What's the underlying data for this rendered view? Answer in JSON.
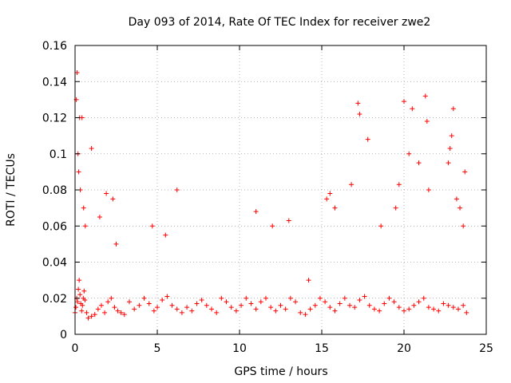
{
  "chart_data": {
    "type": "scatter",
    "title": "Day 093 of 2014, Rate Of TEC Index for receiver zwe2",
    "xlabel": "GPS time / hours",
    "ylabel": "ROTI / TECUs",
    "xlim": [
      0,
      25
    ],
    "ylim": [
      0,
      0.16
    ],
    "x_ticks": [
      0,
      5,
      10,
      15,
      20,
      25
    ],
    "x_tick_labels": [
      "0",
      "5",
      "10",
      "15",
      "20",
      "25"
    ],
    "y_ticks": [
      0,
      0.02,
      0.04,
      0.06,
      0.08,
      0.1,
      0.12,
      0.14,
      0.16
    ],
    "y_tick_labels": [
      "0",
      "0.02",
      "0.04",
      "0.06",
      "0.08",
      "0.1",
      "0.12",
      "0.14",
      "0.16"
    ],
    "grid": true,
    "marker": "+",
    "series": [
      {
        "name": "ROTI",
        "color": "#ff0000",
        "x": [
          0.0,
          0.05,
          0.1,
          0.15,
          0.2,
          0.25,
          0.3,
          0.35,
          0.4,
          0.45,
          0.5,
          0.55,
          0.6,
          0.7,
          0.8,
          1.0,
          1.2,
          1.4,
          1.6,
          1.8,
          2.0,
          2.2,
          2.4,
          2.6,
          2.8,
          3.0,
          3.3,
          3.6,
          3.9,
          4.2,
          4.5,
          4.8,
          5.0,
          5.3,
          5.6,
          5.9,
          6.2,
          6.5,
          6.8,
          7.1,
          7.4,
          7.7,
          8.0,
          8.3,
          8.6,
          8.9,
          9.2,
          9.5,
          9.8,
          10.1,
          10.4,
          10.7,
          11.0,
          11.3,
          11.6,
          11.9,
          12.2,
          12.5,
          12.8,
          13.1,
          13.4,
          13.7,
          14.0,
          14.3,
          14.6,
          14.9,
          15.2,
          15.5,
          15.8,
          16.1,
          16.4,
          16.7,
          17.0,
          17.3,
          17.6,
          17.9,
          18.2,
          18.5,
          18.8,
          19.1,
          19.4,
          19.7,
          20.0,
          20.3,
          20.6,
          20.9,
          21.2,
          21.5,
          21.8,
          22.1,
          22.4,
          22.7,
          23.0,
          23.3,
          23.6,
          23.8,
          0.08,
          0.12,
          0.18,
          0.22,
          0.28,
          0.32,
          0.42,
          0.52,
          0.62,
          1.0,
          1.5,
          1.9,
          2.3,
          2.5,
          4.7,
          5.5,
          6.2,
          11.0,
          12.0,
          13.0,
          14.2,
          15.3,
          15.5,
          15.8,
          16.8,
          17.2,
          17.3,
          17.8,
          18.6,
          19.5,
          19.7,
          20.0,
          20.3,
          20.5,
          20.9,
          21.3,
          21.4,
          21.5,
          22.7,
          22.8,
          22.9,
          23.0,
          23.2,
          23.4,
          23.6,
          23.7
        ],
        "y": [
          0.012,
          0.015,
          0.02,
          0.018,
          0.025,
          0.03,
          0.022,
          0.017,
          0.013,
          0.016,
          0.02,
          0.024,
          0.019,
          0.012,
          0.009,
          0.01,
          0.011,
          0.014,
          0.016,
          0.012,
          0.018,
          0.02,
          0.015,
          0.013,
          0.012,
          0.011,
          0.018,
          0.014,
          0.016,
          0.02,
          0.017,
          0.013,
          0.015,
          0.019,
          0.021,
          0.016,
          0.014,
          0.012,
          0.015,
          0.013,
          0.017,
          0.019,
          0.016,
          0.014,
          0.012,
          0.02,
          0.018,
          0.015,
          0.013,
          0.016,
          0.02,
          0.017,
          0.014,
          0.018,
          0.02,
          0.015,
          0.013,
          0.016,
          0.014,
          0.02,
          0.018,
          0.012,
          0.011,
          0.014,
          0.016,
          0.02,
          0.018,
          0.015,
          0.013,
          0.017,
          0.02,
          0.016,
          0.015,
          0.019,
          0.021,
          0.016,
          0.014,
          0.013,
          0.017,
          0.02,
          0.018,
          0.015,
          0.013,
          0.014,
          0.016,
          0.018,
          0.02,
          0.015,
          0.014,
          0.013,
          0.017,
          0.016,
          0.015,
          0.014,
          0.016,
          0.012,
          0.13,
          0.145,
          0.1,
          0.09,
          0.12,
          0.08,
          0.12,
          0.07,
          0.06,
          0.103,
          0.065,
          0.078,
          0.075,
          0.05,
          0.06,
          0.055,
          0.08,
          0.068,
          0.06,
          0.063,
          0.03,
          0.075,
          0.078,
          0.07,
          0.083,
          0.128,
          0.122,
          0.108,
          0.06,
          0.07,
          0.083,
          0.129,
          0.1,
          0.125,
          0.095,
          0.132,
          0.118,
          0.08,
          0.095,
          0.103,
          0.11,
          0.125,
          0.075,
          0.07,
          0.06,
          0.09
        ]
      }
    ]
  }
}
